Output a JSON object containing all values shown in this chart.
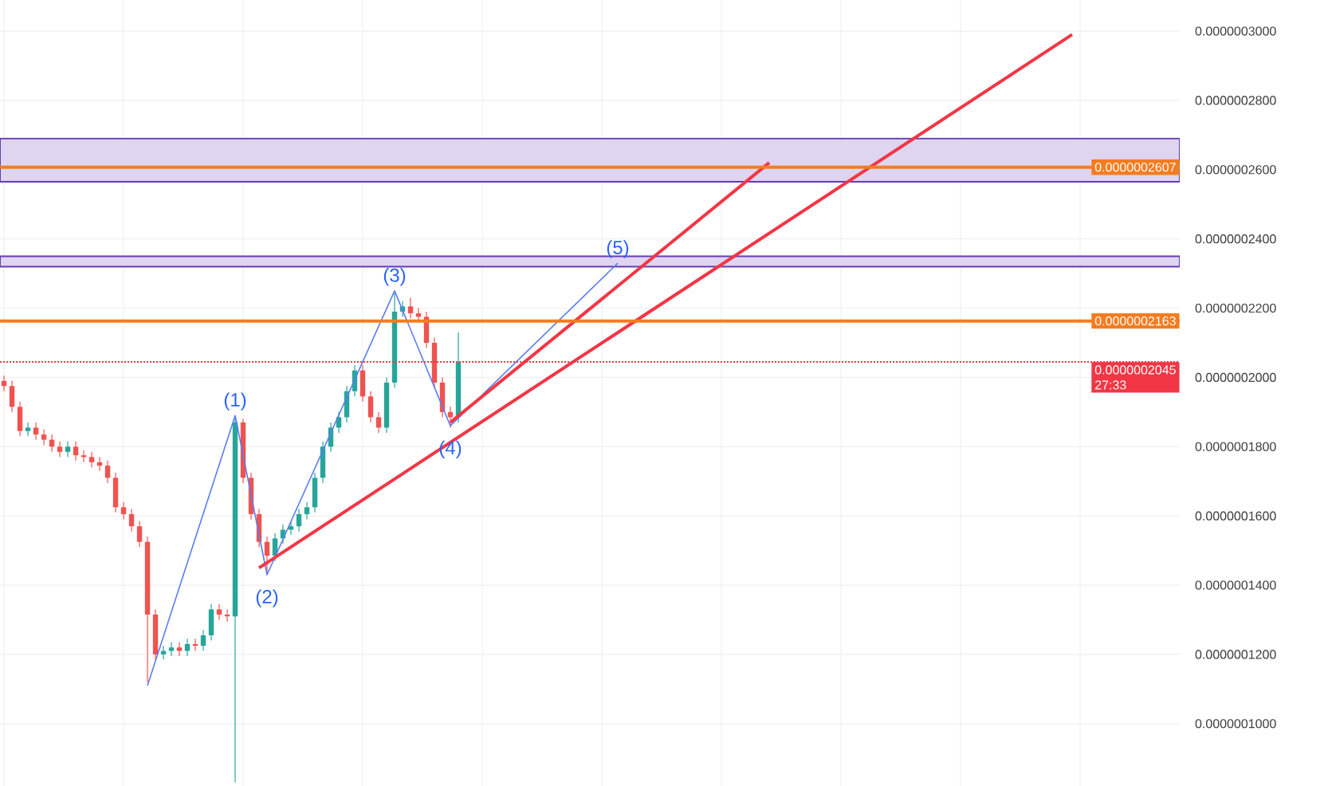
{
  "chart_data": {
    "type": "candlestick",
    "categories": [
      null,
      null,
      null,
      null,
      null,
      null,
      null,
      null,
      null,
      null,
      null,
      null,
      null,
      null,
      null,
      null,
      null,
      null,
      null,
      null,
      null,
      null,
      null,
      null,
      null,
      null,
      null,
      null,
      null,
      null,
      null,
      null,
      null,
      null,
      null,
      null,
      null,
      null,
      null,
      null,
      null,
      null,
      null,
      null,
      null,
      null,
      null,
      null,
      null,
      null,
      null,
      null,
      null,
      null,
      null,
      null,
      null,
      null,
      null,
      null,
      null,
      null,
      null,
      null,
      null,
      null,
      null,
      null,
      null,
      null,
      null,
      null,
      null,
      null,
      null,
      null,
      null,
      null,
      null,
      null,
      null,
      null,
      null,
      null,
      null,
      null,
      null,
      null,
      null,
      null,
      null,
      null,
      null,
      null,
      null,
      null,
      null,
      null,
      null,
      null,
      null,
      null,
      null,
      null,
      null,
      null,
      null,
      null,
      null,
      null,
      null,
      null,
      null,
      null,
      null,
      null,
      null,
      null,
      null,
      null,
      null,
      null,
      null,
      null,
      null,
      null,
      null,
      null,
      null,
      null,
      null,
      null,
      null,
      null,
      null,
      null,
      null,
      null,
      null,
      null,
      null,
      null,
      null,
      null,
      null,
      null,
      null,
      null
    ],
    "ohlc": [
      [
        1.99e-07,
        2.005e-07,
        1.96e-07,
        1.975e-07
      ],
      [
        1.975e-07,
        1.99e-07,
        1.9e-07,
        1.915e-07
      ],
      [
        1.915e-07,
        1.93e-07,
        1.83e-07,
        1.845e-07
      ],
      [
        1.845e-07,
        1.87e-07,
        1.83e-07,
        1.855e-07
      ],
      [
        1.855e-07,
        1.87e-07,
        1.82e-07,
        1.835e-07
      ],
      [
        1.835e-07,
        1.85e-07,
        1.805e-07,
        1.82e-07
      ],
      [
        1.82e-07,
        1.835e-07,
        1.785e-07,
        1.8e-07
      ],
      [
        1.8e-07,
        1.815e-07,
        1.77e-07,
        1.785e-07
      ],
      [
        1.785e-07,
        1.815e-07,
        1.77e-07,
        1.8e-07
      ],
      [
        1.8e-07,
        1.815e-07,
        1.76e-07,
        1.775e-07
      ],
      [
        1.775e-07,
        1.79e-07,
        1.755e-07,
        1.77e-07
      ],
      [
        1.77e-07,
        1.785e-07,
        1.74e-07,
        1.755e-07
      ],
      [
        1.755e-07,
        1.77e-07,
        1.73e-07,
        1.745e-07
      ],
      [
        1.745e-07,
        1.76e-07,
        1.695e-07,
        1.71e-07
      ],
      [
        1.71e-07,
        1.725e-07,
        1.61e-07,
        1.625e-07
      ],
      [
        1.625e-07,
        1.64e-07,
        1.59e-07,
        1.605e-07
      ],
      [
        1.605e-07,
        1.62e-07,
        1.555e-07,
        1.57e-07
      ],
      [
        1.57e-07,
        1.585e-07,
        1.51e-07,
        1.525e-07
      ],
      [
        1.525e-07,
        1.54e-07,
        1.12e-07,
        1.315e-07
      ],
      [
        1.315e-07,
        1.33e-07,
        1.185e-07,
        1.2e-07
      ],
      [
        1.2e-07,
        1.225e-07,
        1.185e-07,
        1.21e-07
      ],
      [
        1.21e-07,
        1.235e-07,
        1.195e-07,
        1.22e-07
      ],
      [
        1.22e-07,
        1.235e-07,
        1.195e-07,
        1.21e-07
      ],
      [
        1.21e-07,
        1.245e-07,
        1.195e-07,
        1.23e-07
      ],
      [
        1.23e-07,
        1.245e-07,
        1.21e-07,
        1.225e-07
      ],
      [
        1.225e-07,
        1.27e-07,
        1.21e-07,
        1.255e-07
      ],
      [
        1.255e-07,
        1.345e-07,
        1.24e-07,
        1.33e-07
      ],
      [
        1.33e-07,
        1.345e-07,
        1.3e-07,
        1.315e-07
      ],
      [
        1.315e-07,
        1.33e-07,
        1.295e-07,
        1.31e-07
      ],
      [
        1.31e-07,
        1.885e-07,
        8.3e-08,
        1.87e-07
      ],
      [
        1.87e-07,
        1.88e-07,
        1.695e-07,
        1.71e-07
      ],
      [
        1.71e-07,
        1.725e-07,
        1.59e-07,
        1.605e-07
      ],
      [
        1.605e-07,
        1.62e-07,
        1.51e-07,
        1.525e-07
      ],
      [
        1.525e-07,
        1.54e-07,
        1.43e-07,
        1.485e-07
      ],
      [
        1.485e-07,
        1.55e-07,
        1.47e-07,
        1.535e-07
      ],
      [
        1.535e-07,
        1.575e-07,
        1.52e-07,
        1.56e-07
      ],
      [
        1.56e-07,
        1.585e-07,
        1.545e-07,
        1.57e-07
      ],
      [
        1.57e-07,
        1.62e-07,
        1.555e-07,
        1.605e-07
      ],
      [
        1.605e-07,
        1.64e-07,
        1.59e-07,
        1.625e-07
      ],
      [
        1.625e-07,
        1.725e-07,
        1.61e-07,
        1.71e-07
      ],
      [
        1.71e-07,
        1.815e-07,
        1.695e-07,
        1.8e-07
      ],
      [
        1.8e-07,
        1.87e-07,
        1.785e-07,
        1.855e-07
      ],
      [
        1.855e-07,
        1.9e-07,
        1.84e-07,
        1.885e-07
      ],
      [
        1.885e-07,
        1.975e-07,
        1.87e-07,
        1.96e-07
      ],
      [
        1.96e-07,
        2.035e-07,
        1.945e-07,
        2.02e-07
      ],
      [
        2.02e-07,
        2.035e-07,
        1.93e-07,
        1.945e-07
      ],
      [
        1.945e-07,
        1.96e-07,
        1.87e-07,
        1.885e-07
      ],
      [
        1.885e-07,
        1.9e-07,
        1.84e-07,
        1.855e-07
      ],
      [
        1.855e-07,
        2e-07,
        1.84e-07,
        1.985e-07
      ],
      [
        1.985e-07,
        2.245e-07,
        1.97e-07,
        2.19e-07
      ],
      [
        2.19e-07,
        2.22e-07,
        2.175e-07,
        2.205e-07
      ],
      [
        2.205e-07,
        2.23e-07,
        2.17e-07,
        2.185e-07
      ],
      [
        2.185e-07,
        2.2e-07,
        2.16e-07,
        2.175e-07
      ],
      [
        2.175e-07,
        2.19e-07,
        2.085e-07,
        2.1e-07
      ],
      [
        2.1e-07,
        2.115e-07,
        1.97e-07,
        1.985e-07
      ],
      [
        1.985e-07,
        2e-07,
        1.885e-07,
        1.9e-07
      ],
      [
        1.9e-07,
        1.915e-07,
        1.855e-07,
        1.885e-07
      ],
      [
        1.885e-07,
        2.13e-07,
        1.87e-07,
        2.045e-07
      ],
      null,
      null,
      null,
      null,
      null,
      null,
      null,
      null,
      null,
      null,
      null,
      null,
      null,
      null,
      null,
      null,
      null,
      null,
      null,
      null,
      null,
      null,
      null,
      null,
      null,
      null,
      null,
      null,
      null,
      null,
      null,
      null,
      null,
      null,
      null,
      null,
      null,
      null,
      null,
      null,
      null,
      null,
      null,
      null,
      null,
      null,
      null,
      null,
      null,
      null,
      null,
      null,
      null,
      null,
      null,
      null,
      null,
      null,
      null,
      null,
      null,
      null,
      null,
      null,
      null,
      null,
      null,
      null,
      null,
      null,
      null,
      null,
      null,
      null,
      null,
      null,
      null,
      null,
      null,
      null,
      null,
      null,
      null,
      null,
      null,
      null,
      null,
      null,
      null,
      null
    ],
    "series": [
      {
        "type": "line",
        "color": "#5b7cf5",
        "values": [
          null,
          null,
          null,
          null,
          null,
          null,
          null,
          null,
          null,
          null,
          null,
          null,
          null,
          null,
          null,
          null,
          null,
          null,
          1.11e-07,
          null,
          null,
          null,
          null,
          null,
          null,
          null,
          null,
          null,
          null,
          1.89e-07,
          null,
          null,
          null,
          1.43e-07,
          null,
          null,
          null,
          null,
          null,
          null,
          null,
          null,
          null,
          null,
          null,
          null,
          null,
          null,
          null,
          2.25e-07,
          null,
          null,
          null,
          null,
          null,
          null,
          1.86e-07,
          null,
          null,
          null,
          null,
          null,
          null,
          null,
          null,
          null,
          null,
          null,
          null,
          null,
          null,
          null,
          null,
          null,
          null,
          null,
          null,
          2.33e-07,
          null,
          null,
          null,
          null,
          null,
          null,
          null,
          null,
          null,
          null,
          null,
          null,
          null,
          null,
          null,
          null,
          null,
          null,
          null,
          null,
          null,
          null,
          null,
          null,
          null,
          null,
          null,
          null,
          null,
          null,
          null,
          null,
          null,
          null,
          null,
          null,
          null,
          null,
          null,
          null,
          null,
          null,
          null,
          null,
          null,
          null,
          null,
          null,
          null,
          null,
          null,
          null,
          null,
          null,
          null,
          null,
          null,
          null,
          null,
          null,
          null,
          null,
          null,
          null,
          null,
          null,
          null,
          null,
          null,
          null
        ]
      },
      {
        "type": "line",
        "color": "#f23645",
        "values": [
          null,
          null,
          null,
          null,
          null,
          null,
          null,
          null,
          null,
          null,
          null,
          null,
          null,
          null,
          null,
          null,
          null,
          null,
          null,
          null,
          null,
          null,
          null,
          null,
          null,
          null,
          null,
          null,
          null,
          null,
          null,
          null,
          1.45e-07,
          null,
          null,
          null,
          null,
          null,
          null,
          null,
          null,
          null,
          null,
          null,
          null,
          null,
          null,
          null,
          null,
          null,
          null,
          null,
          null,
          null,
          null,
          null,
          null,
          null,
          null,
          null,
          null,
          null,
          null,
          null,
          null,
          null,
          null,
          null,
          null,
          null,
          null,
          null,
          null,
          null,
          null,
          null,
          null,
          null,
          null,
          null,
          null,
          null,
          null,
          null,
          null,
          null,
          null,
          null,
          null,
          null,
          null,
          null,
          null,
          null,
          null,
          null,
          null,
          null,
          null,
          null,
          null,
          null,
          null,
          null,
          null,
          null,
          null,
          null,
          null,
          null,
          null,
          null,
          null,
          null,
          null,
          null,
          null,
          null,
          null,
          null,
          null,
          null,
          null,
          null,
          null,
          null,
          null,
          null,
          null,
          null,
          null,
          null,
          null,
          null,
          2.99e-07,
          null,
          null,
          null,
          null,
          null,
          null,
          null,
          null,
          null,
          null,
          null,
          null,
          null
        ]
      },
      {
        "type": "line",
        "color": "#f23645",
        "values": [
          null,
          null,
          null,
          null,
          null,
          null,
          null,
          null,
          null,
          null,
          null,
          null,
          null,
          null,
          null,
          null,
          null,
          null,
          null,
          null,
          null,
          null,
          null,
          null,
          null,
          null,
          null,
          null,
          null,
          null,
          null,
          null,
          null,
          null,
          null,
          null,
          null,
          null,
          null,
          null,
          null,
          null,
          null,
          null,
          null,
          null,
          null,
          null,
          null,
          null,
          null,
          null,
          null,
          null,
          null,
          null,
          1.87e-07,
          null,
          null,
          null,
          null,
          null,
          null,
          null,
          null,
          null,
          null,
          null,
          null,
          null,
          null,
          null,
          null,
          null,
          null,
          null,
          null,
          null,
          null,
          null,
          null,
          null,
          null,
          null,
          null,
          null,
          null,
          null,
          null,
          null,
          null,
          null,
          null,
          null,
          null,
          null,
          2.62e-07,
          null,
          null,
          null,
          null,
          null,
          null,
          null,
          null,
          null,
          null,
          null,
          null,
          null,
          null,
          null,
          null,
          null,
          null,
          null,
          null,
          null,
          null,
          null,
          null,
          null,
          null,
          null,
          null,
          null,
          null,
          null,
          null,
          null,
          null,
          null,
          null,
          null,
          null,
          null,
          null,
          null,
          null,
          null,
          null,
          null,
          null,
          null,
          null,
          null,
          null,
          null
        ]
      }
    ],
    "ylim": [
      8.2e-08,
      3.09e-07
    ],
    "yticks": [
      {
        "value": 1e-07,
        "label": "0.0000001000"
      },
      {
        "value": 1.2e-07,
        "label": "0.0000001200"
      },
      {
        "value": 1.4e-07,
        "label": "0.0000001400"
      },
      {
        "value": 1.6e-07,
        "label": "0.0000001600"
      },
      {
        "value": 1.8e-07,
        "label": "0.0000001800"
      },
      {
        "value": 2e-07,
        "label": "0.0000002000"
      },
      {
        "value": 2.2e-07,
        "label": "0.0000002200"
      },
      {
        "value": 2.4e-07,
        "label": "0.0000002400"
      },
      {
        "value": 2.6e-07,
        "label": "0.0000002600"
      },
      {
        "value": 2.8e-07,
        "label": "0.0000002800"
      },
      {
        "value": 3e-07,
        "label": "0.0000003000"
      }
    ],
    "tick_labels": "y",
    "grid": true,
    "ref_lines": [
      {
        "axis": "y",
        "value": 2.607e-07,
        "label": "0.0000002607",
        "color": "#f57c1f"
      },
      {
        "axis": "y",
        "value": 2.163e-07,
        "label": "0.0000002163",
        "color": "#f57c1f"
      },
      {
        "axis": "y",
        "value": 2.045e-07,
        "label": "0.0000002045",
        "color": "#f23645",
        "line_style": "dotted"
      }
    ],
    "bands": [
      {
        "axis": "y",
        "from": 2.565e-07,
        "to": 2.69e-07,
        "color": "#dfd5f0"
      },
      {
        "axis": "y",
        "from": 2.32e-07,
        "to": 2.35e-07,
        "color": "#dfd5f0"
      }
    ],
    "annotations": [
      {
        "text": "(1)",
        "y": 1.89e-07
      },
      {
        "text": "(2)",
        "y": 1.43e-07
      },
      {
        "text": "(3)",
        "y": 2.25e-07
      },
      {
        "text": "(4)",
        "y": 1.86e-07
      },
      {
        "text": "(5)",
        "y": 2.33e-07
      },
      "27:33"
    ]
  }
}
